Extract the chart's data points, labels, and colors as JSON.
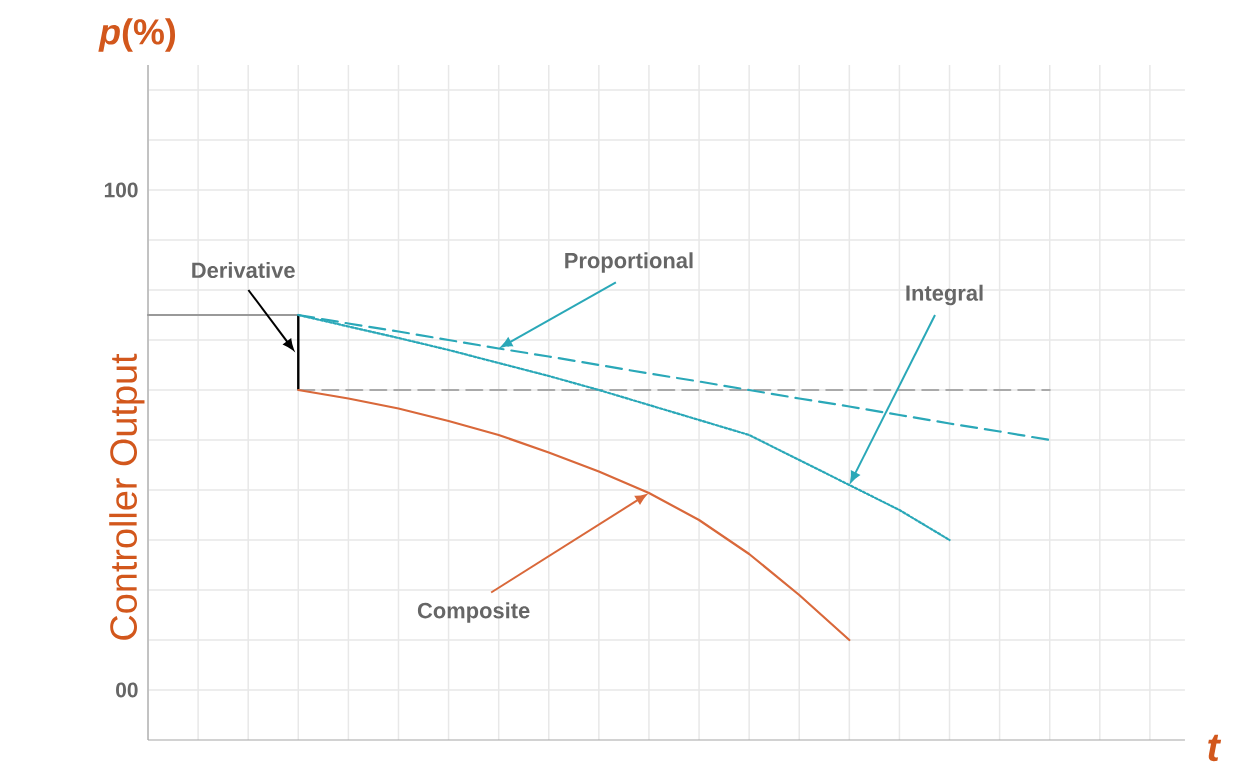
{
  "chart_data": {
    "type": "line",
    "xlabel": "t",
    "ylabel": "Controller Output",
    "categories": [
      null,
      null,
      null,
      null,
      null,
      null,
      null,
      null,
      null,
      null,
      null,
      null,
      null,
      null,
      null,
      null,
      null,
      null,
      null,
      null,
      null
    ],
    "ylim": [
      -10,
      125
    ],
    "yticks": [
      {
        "value": 0,
        "label": "00"
      },
      {
        "value": 10,
        "label": null
      },
      {
        "value": 20,
        "label": null
      },
      {
        "value": 30,
        "label": null
      },
      {
        "value": 40,
        "label": null
      },
      {
        "value": 50,
        "label": null
      },
      {
        "value": 60,
        "label": null
      },
      {
        "value": 70,
        "label": null
      },
      {
        "value": 80,
        "label": null
      },
      {
        "value": 90,
        "label": null
      },
      100,
      {
        "value": 110,
        "label": null
      },
      {
        "value": 120,
        "label": null
      }
    ],
    "grid": true,
    "marker": "none",
    "series": [
      {
        "color": "#999999",
        "line_style": "solid",
        "values": [
          75,
          75,
          75,
          75,
          null,
          null,
          null,
          null,
          null,
          null,
          null,
          null,
          null,
          null,
          null,
          null,
          null,
          null,
          null,
          null,
          null
        ]
      },
      {
        "type": "bar",
        "color": "#000000",
        "values": [
          null,
          null,
          null,
          15,
          null,
          null,
          null,
          null,
          null,
          null,
          null,
          null,
          null,
          null,
          null,
          null,
          null,
          null,
          null,
          null,
          null
        ],
        "base": [
          null,
          null,
          null,
          60,
          null,
          null,
          null,
          null,
          null,
          null,
          null,
          null,
          null,
          null,
          null,
          null,
          null,
          null,
          null,
          null,
          null
        ]
      },
      {
        "color": "#aaaaaa",
        "line_style": "dashed",
        "values": [
          null,
          null,
          null,
          60,
          60,
          60,
          60,
          60,
          60,
          60,
          60,
          60,
          60,
          60,
          60,
          60,
          60,
          60,
          60,
          null,
          null
        ]
      },
      {
        "color": "#2aa8b8",
        "line_style": "dashed",
        "values": [
          null,
          null,
          null,
          75,
          73.3,
          71.7,
          70,
          68.3,
          66.7,
          65,
          63.3,
          61.7,
          60,
          58.3,
          56.7,
          55,
          53.3,
          51.7,
          50,
          null,
          null
        ]
      },
      {
        "color": "#2aa8b8",
        "line_style": "dotted",
        "values": [
          null,
          null,
          null,
          75,
          72.7,
          70.4,
          68,
          65.4,
          62.8,
          60,
          57,
          54,
          51,
          46,
          41,
          36,
          30,
          null,
          null,
          null,
          null
        ]
      },
      {
        "color": "#d9683a",
        "line_style": "solid",
        "values": [
          null,
          null,
          null,
          60,
          58.3,
          56.3,
          53.8,
          51,
          47.5,
          43.7,
          39.4,
          34,
          27.2,
          19,
          10,
          null,
          null,
          null,
          null,
          null,
          null
        ]
      }
    ],
    "annotations": [
      "Derivative",
      "Proportional",
      "Integral",
      "Composite",
      "*p*(%)"
    ]
  }
}
